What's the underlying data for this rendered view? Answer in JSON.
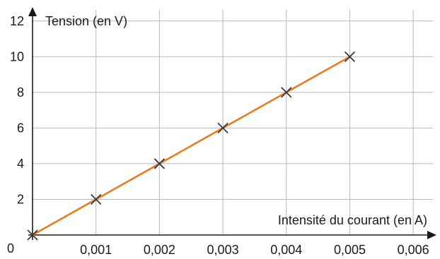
{
  "chart_data": {
    "type": "line",
    "xlabel": "Intensité du courant (en A)",
    "ylabel": "Tension (en V)",
    "xlim": [
      0,
      0.0065
    ],
    "ylim": [
      0,
      13.1
    ],
    "grid": true,
    "x_ticks": [
      0.001,
      0.002,
      0.003,
      0.004,
      0.005,
      0.006
    ],
    "x_tick_labels": [
      "0,001",
      "0,002",
      "0,003",
      "0,004",
      "0,005",
      "0,006"
    ],
    "y_ticks": [
      2,
      4,
      6,
      8,
      10,
      12
    ],
    "y_tick_labels": [
      "2",
      "4",
      "6",
      "8",
      "10",
      "12"
    ],
    "origin_label": "0",
    "series": [
      {
        "x": [
          0,
          0.001,
          0.002,
          0.003,
          0.004,
          0.005
        ],
        "y": [
          0,
          2,
          4,
          6,
          8,
          10
        ],
        "line_color": "#ec7a1c",
        "marker": "x"
      }
    ]
  }
}
